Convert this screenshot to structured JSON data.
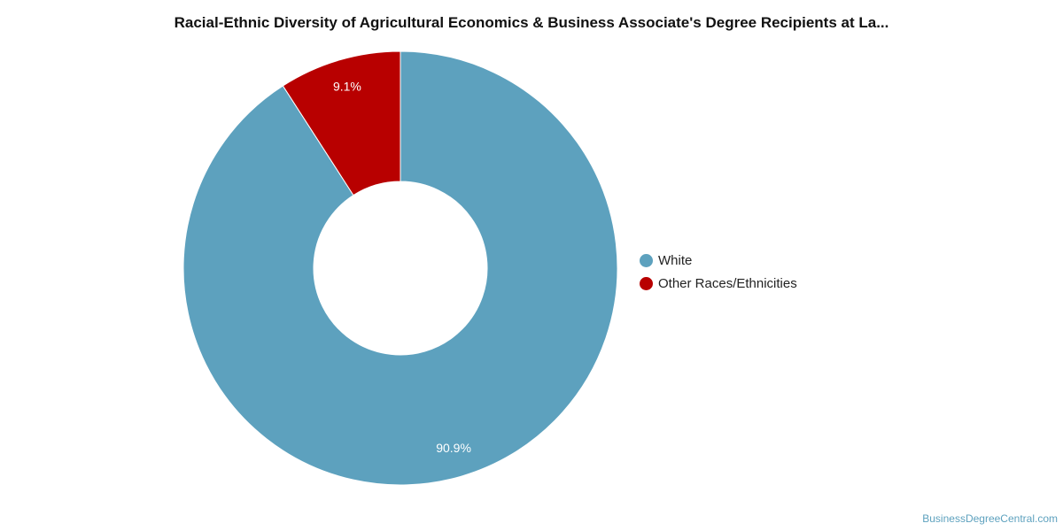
{
  "chart_data": {
    "type": "pie",
    "title": "Racial-Ethnic Diversity of Agricultural Economics & Business Associate's Degree Recipients at La...",
    "donut": true,
    "start_angle_deg": 0,
    "direction": "clockwise",
    "legend_position": "right",
    "slices": [
      {
        "label": "White",
        "value": 90.9,
        "display": "90.9%",
        "color": "#5da1be"
      },
      {
        "label": "Other Races/Ethnicities",
        "value": 9.1,
        "display": "9.1%",
        "color": "#b80000"
      }
    ]
  },
  "watermark": "BusinessDegreeCentral.com"
}
